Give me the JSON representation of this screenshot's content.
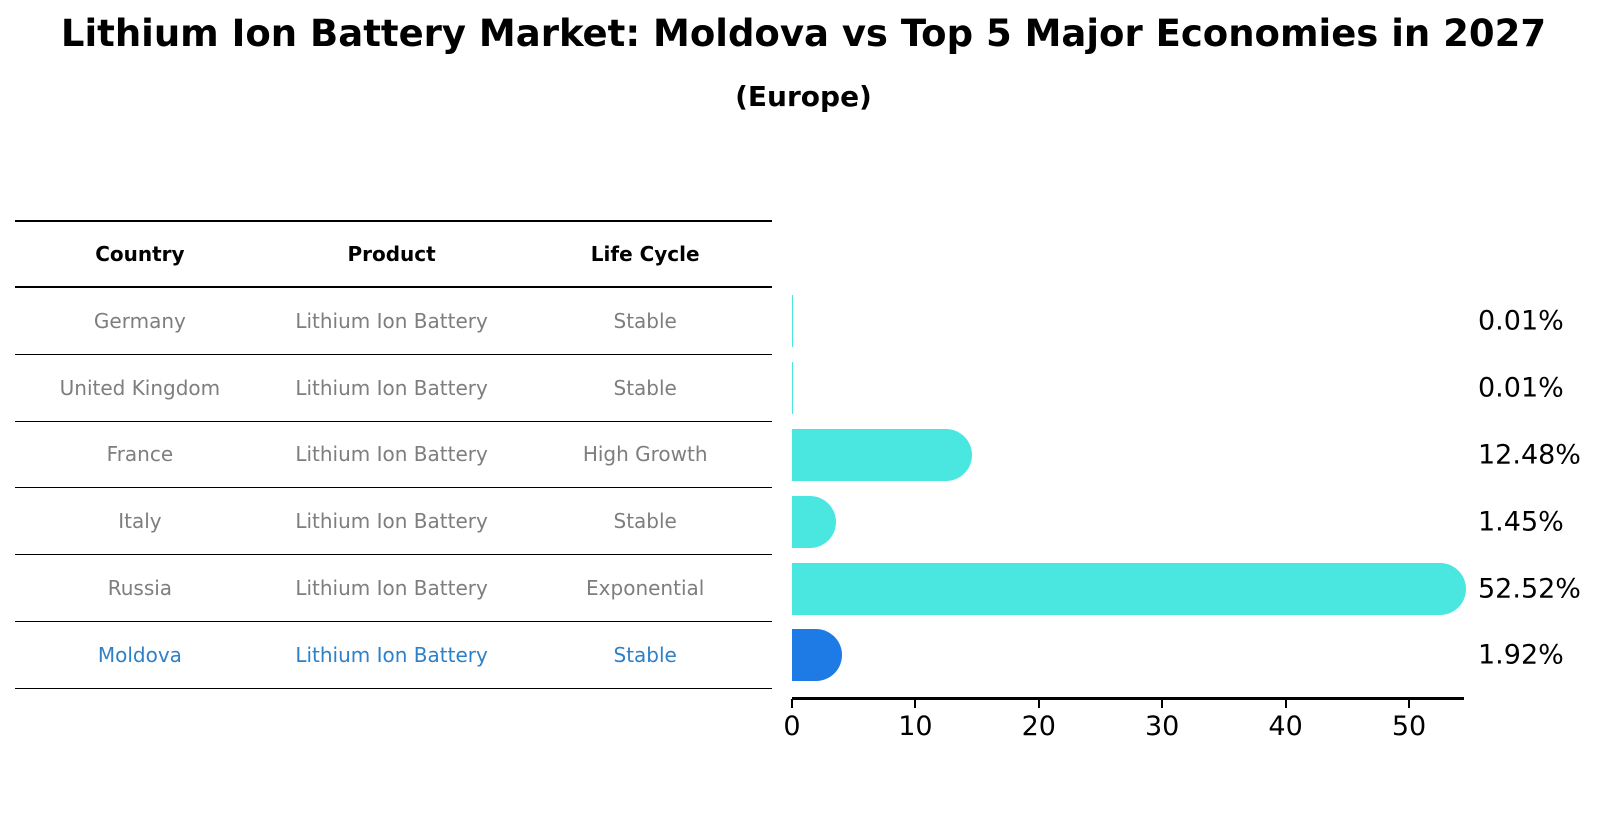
{
  "title": "Lithium Ion Battery Market: Moldova vs Top 5 Major Economies in 2027",
  "subtitle": "(Europe)",
  "table": {
    "headers": [
      "Country",
      "Product",
      "Life Cycle"
    ],
    "rows": [
      {
        "country": "Germany",
        "product": "Lithium Ion Battery",
        "life_cycle": "Stable",
        "highlight": false
      },
      {
        "country": "United Kingdom",
        "product": "Lithium Ion Battery",
        "life_cycle": "Stable",
        "highlight": false
      },
      {
        "country": "France",
        "product": "Lithium Ion Battery",
        "life_cycle": "High Growth",
        "highlight": false
      },
      {
        "country": "Italy",
        "product": "Lithium Ion Battery",
        "life_cycle": "Stable",
        "highlight": false
      },
      {
        "country": "Russia",
        "product": "Lithium Ion Battery",
        "life_cycle": "Exponential",
        "highlight": false
      },
      {
        "country": "Moldova",
        "product": "Lithium Ion Battery",
        "life_cycle": "Stable",
        "highlight": true
      }
    ]
  },
  "chart_data": {
    "type": "bar",
    "orientation": "horizontal",
    "categories": [
      "Germany",
      "United Kingdom",
      "France",
      "Italy",
      "Russia",
      "Moldova"
    ],
    "values": [
      0.01,
      0.01,
      12.48,
      1.45,
      52.52,
      1.92
    ],
    "value_labels": [
      "0.01%",
      "0.01%",
      "12.48%",
      "1.45%",
      "52.52%",
      "1.92%"
    ],
    "x_ticks": [
      0,
      10,
      20,
      30,
      40,
      50
    ],
    "xlim": [
      0,
      54.5
    ],
    "grid": false,
    "legend": false,
    "colors": {
      "bar_default": "#4AE6E0",
      "bar_highlight": "#1E7AE4",
      "highlight_text": "#2E80C8",
      "cell_text": "#7E7E7E",
      "axis_text": "#000000"
    }
  }
}
